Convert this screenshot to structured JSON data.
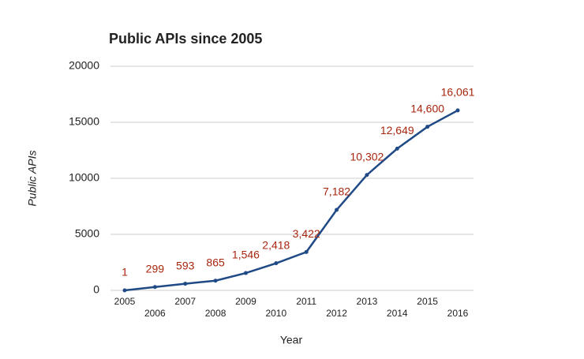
{
  "chart_data": {
    "type": "line",
    "title": "Public APIs since 2005",
    "x_label": "Year",
    "y_label": "Public APIs",
    "categories": [
      "2005",
      "2006",
      "2007",
      "2008",
      "2009",
      "2010",
      "2011",
      "2012",
      "2013",
      "2014",
      "2015",
      "2016"
    ],
    "series": [
      {
        "name": "Public APIs",
        "color": "#1f4a86",
        "values": [
          1,
          299,
          593,
          865,
          1546,
          2418,
          3422,
          7182,
          10302,
          12649,
          14600,
          16061
        ],
        "value_labels": [
          "1",
          "299",
          "593",
          "865",
          "1,546",
          "2,418",
          "3,422",
          "7,182",
          "10,302",
          "12,649",
          "14,600",
          "16,061"
        ],
        "label_color": "#a8260e"
      }
    ],
    "ylim": [
      0,
      20000
    ],
    "yticks": [
      0,
      5000,
      10000,
      15000,
      20000
    ],
    "grid": true
  }
}
